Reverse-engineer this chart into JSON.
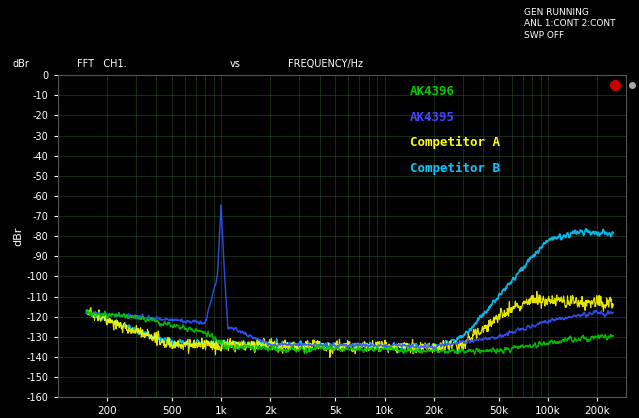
{
  "background_color": "#000000",
  "plot_bg_color": "#000000",
  "header_bg_color": "#111111",
  "title_text_color": "#ffffff",
  "grid_color": "#2a4a2a",
  "ylabel": "dBr",
  "xlabel_label": "FREQUENCY/Hz",
  "header_left": "FFT   CH1.",
  "header_mid": "vs",
  "header_right": "FREQUENCY/Hz",
  "header_top_right": "GEN RUNNING\nANL 1:CONT 2:CONT\nSWP OFF",
  "ylim": [
    -160,
    0
  ],
  "yticks": [
    0,
    -10,
    -20,
    -30,
    -40,
    -50,
    -60,
    -70,
    -80,
    -90,
    -100,
    -110,
    -120,
    -130,
    -140,
    -150,
    -160
  ],
  "xtick_labels": [
    "200",
    "500",
    "1k",
    "2k",
    "5k",
    "10k",
    "20k",
    "50k",
    "100k",
    "200k"
  ],
  "xtick_positions": [
    200,
    500,
    1000,
    2000,
    5000,
    10000,
    20000,
    50000,
    100000,
    200000
  ],
  "xmin": 100,
  "xmax": 300000,
  "legend": [
    {
      "label": "AK4396",
      "color": "#00cc00"
    },
    {
      "label": "AK4395",
      "color": "#4444ff"
    },
    {
      "label": "Competitor A",
      "color": "#ffff00"
    },
    {
      "label": "Competitor B",
      "color": "#00ccff"
    }
  ],
  "red_dot_x": 0.88,
  "red_dot_y": 0.88
}
